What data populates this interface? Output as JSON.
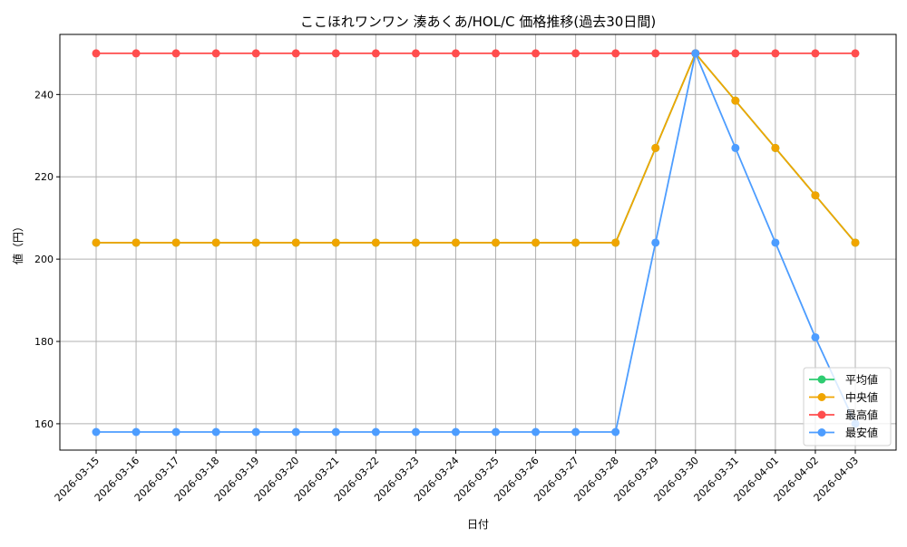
{
  "chart_data": {
    "type": "line",
    "title": "ここほれワンワン 湊あくあ/HOL/C 価格推移(過去30日間)",
    "xlabel": "日付",
    "ylabel": "値（円）",
    "categories": [
      "2026-03-15",
      "2026-03-16",
      "2026-03-17",
      "2026-03-18",
      "2026-03-19",
      "2026-03-20",
      "2026-03-21",
      "2026-03-22",
      "2026-03-23",
      "2026-03-24",
      "2026-03-25",
      "2026-03-26",
      "2026-03-27",
      "2026-03-28",
      "2026-03-29",
      "2026-03-30",
      "2026-03-31",
      "2026-04-01",
      "2026-04-02",
      "2026-04-03"
    ],
    "ylim": [
      153.6,
      254.6
    ],
    "yticks": [
      160,
      180,
      200,
      220,
      240
    ],
    "grid": true,
    "legend_position": "bottom-right",
    "series": [
      {
        "name": "平均値",
        "color": "#2ecc71",
        "values": [
          204,
          204,
          204,
          204,
          204,
          204,
          204,
          204,
          204,
          204,
          204,
          204,
          204,
          204,
          227,
          250,
          238.5,
          227,
          215.5,
          204
        ]
      },
      {
        "name": "中央値",
        "color": "#f0a500",
        "values": [
          204,
          204,
          204,
          204,
          204,
          204,
          204,
          204,
          204,
          204,
          204,
          204,
          204,
          204,
          227,
          250,
          238.5,
          227,
          215.5,
          204
        ]
      },
      {
        "name": "最高値",
        "color": "#ff4d4d",
        "values": [
          250,
          250,
          250,
          250,
          250,
          250,
          250,
          250,
          250,
          250,
          250,
          250,
          250,
          250,
          250,
          250,
          250,
          250,
          250,
          250
        ]
      },
      {
        "name": "最安値",
        "color": "#4d9dff",
        "values": [
          158,
          158,
          158,
          158,
          158,
          158,
          158,
          158,
          158,
          158,
          158,
          158,
          158,
          158,
          204,
          250,
          227,
          204,
          181,
          160
        ]
      }
    ]
  }
}
